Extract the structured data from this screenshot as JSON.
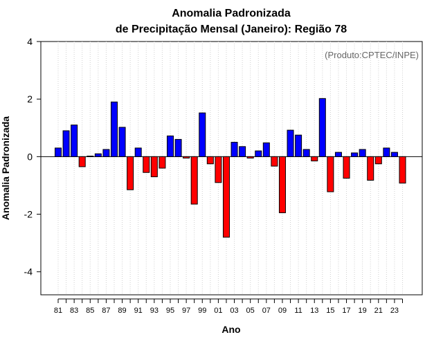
{
  "chart_data": {
    "type": "bar",
    "title": "Anomalia Padronizada",
    "subtitle": "de Precipitação Mensal (Janeiro): Região 78",
    "xlabel": "Ano",
    "ylabel": "Anomalia Padronizada",
    "annotation": "(Produto:CPTEC/INPE)",
    "ylim": [
      -4.8,
      4.0
    ],
    "yticks": [
      4,
      2,
      0,
      -2,
      -4
    ],
    "grid": "vertical dotted",
    "positive_color": "#0000ff",
    "negative_color": "#ff0000",
    "categories": [
      "81",
      "82",
      "83",
      "84",
      "85",
      "86",
      "87",
      "88",
      "89",
      "90",
      "91",
      "92",
      "93",
      "94",
      "95",
      "96",
      "97",
      "98",
      "99",
      "00",
      "01",
      "02",
      "03",
      "04",
      "05",
      "06",
      "07",
      "08",
      "09",
      "10",
      "11",
      "12",
      "13",
      "14",
      "15",
      "16",
      "17",
      "18",
      "19",
      "20",
      "21",
      "22",
      "23",
      "24"
    ],
    "xtick_labels": [
      "81",
      "83",
      "85",
      "87",
      "89",
      "91",
      "93",
      "95",
      "97",
      "99",
      "01",
      "03",
      "05",
      "07",
      "09",
      "11",
      "13",
      "15",
      "17",
      "19",
      "21",
      "23"
    ],
    "values": [
      0.3,
      0.9,
      1.1,
      -0.35,
      0.02,
      0.1,
      0.25,
      1.9,
      1.02,
      -1.15,
      0.3,
      -0.55,
      -0.7,
      -0.4,
      0.72,
      0.6,
      -0.05,
      -1.65,
      1.52,
      -0.25,
      -0.9,
      -2.8,
      0.5,
      0.35,
      -0.05,
      0.2,
      0.48,
      -0.33,
      -1.95,
      0.92,
      0.75,
      0.25,
      -0.15,
      2.02,
      -1.22,
      0.15,
      -0.75,
      0.13,
      0.25,
      -0.82,
      -0.25,
      0.3,
      0.15,
      -0.92
    ]
  }
}
